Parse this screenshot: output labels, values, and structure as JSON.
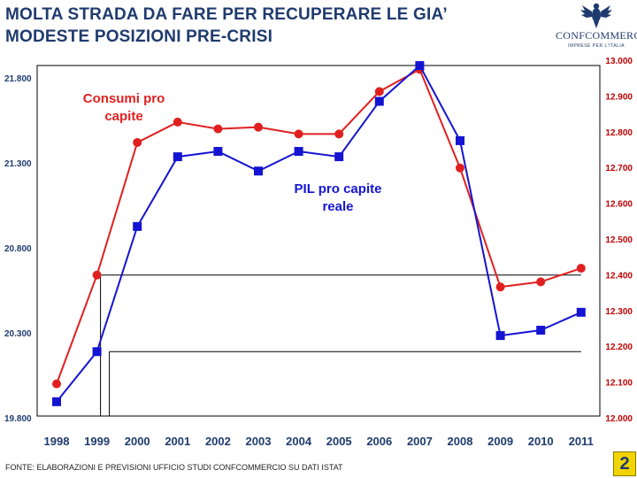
{
  "title_line1": "MOLTA STRADA DA FARE PER RECUPERARE LE GIA’",
  "title_line2": "MODESTE POSIZIONI PRE-CRISI",
  "logo": {
    "brand": "CONFCOMMERCIO",
    "sub": "IMPRESE PER L'ITALIA",
    "icon": "eagle-crest-icon"
  },
  "footer": "FONTE: ELABORAZIONI E PREVISIONI UFFICIO STUDI CONFCOMMERCIO SU DATI ISTAT",
  "page_number": "2",
  "colors": {
    "consumi": "#e02020",
    "pil": "#1414d2",
    "title": "#1f3b6e",
    "right_axis": "#c00000"
  },
  "chart_data": {
    "type": "line",
    "categories": [
      "1998",
      "1999",
      "2000",
      "2001",
      "2002",
      "2003",
      "2004",
      "2005",
      "2006",
      "2007",
      "2008",
      "2009",
      "2010",
      "2011"
    ],
    "series": [
      {
        "name": "Consumi pro capite",
        "axis": "left",
        "label_lines": [
          "Consumi pro",
          "capite"
        ],
        "values": [
          20.0,
          20.64,
          21.42,
          21.54,
          21.5,
          21.51,
          21.47,
          21.47,
          21.72,
          21.85,
          21.27,
          20.57,
          20.6,
          20.68
        ]
      },
      {
        "name": "PIL pro capite reale",
        "axis": "right",
        "label_lines": [
          "PIL pro capite",
          "reale"
        ],
        "values": [
          12.045,
          12.185,
          12.535,
          12.73,
          12.745,
          12.69,
          12.745,
          12.73,
          12.885,
          12.985,
          12.775,
          12.23,
          12.245,
          12.295
        ]
      }
    ],
    "left_axis": {
      "ylim": [
        19.8,
        21.8
      ],
      "ticks": [
        "19.800",
        "20.300",
        "20.800",
        "21.300",
        "21.800"
      ],
      "tick_values": [
        19.8,
        20.3,
        20.8,
        21.3,
        21.8
      ]
    },
    "right_axis": {
      "ylim": [
        12.0,
        13.0
      ],
      "ticks": [
        "12.000",
        "12.100",
        "12.200",
        "12.300",
        "12.400",
        "12.500",
        "12.600",
        "12.700",
        "12.800",
        "12.900",
        "13.000"
      ],
      "tick_values": [
        12.0,
        12.1,
        12.2,
        12.3,
        12.4,
        12.5,
        12.6,
        12.7,
        12.8,
        12.9,
        13.0
      ]
    },
    "reference_lines": [
      {
        "series": "Consumi pro capite",
        "from": "1999",
        "to": "2011"
      },
      {
        "series": "PIL pro capite reale",
        "from": "1999",
        "to": "2011"
      }
    ],
    "grid": false,
    "title": "",
    "xlabel": "",
    "ylabel": ""
  }
}
